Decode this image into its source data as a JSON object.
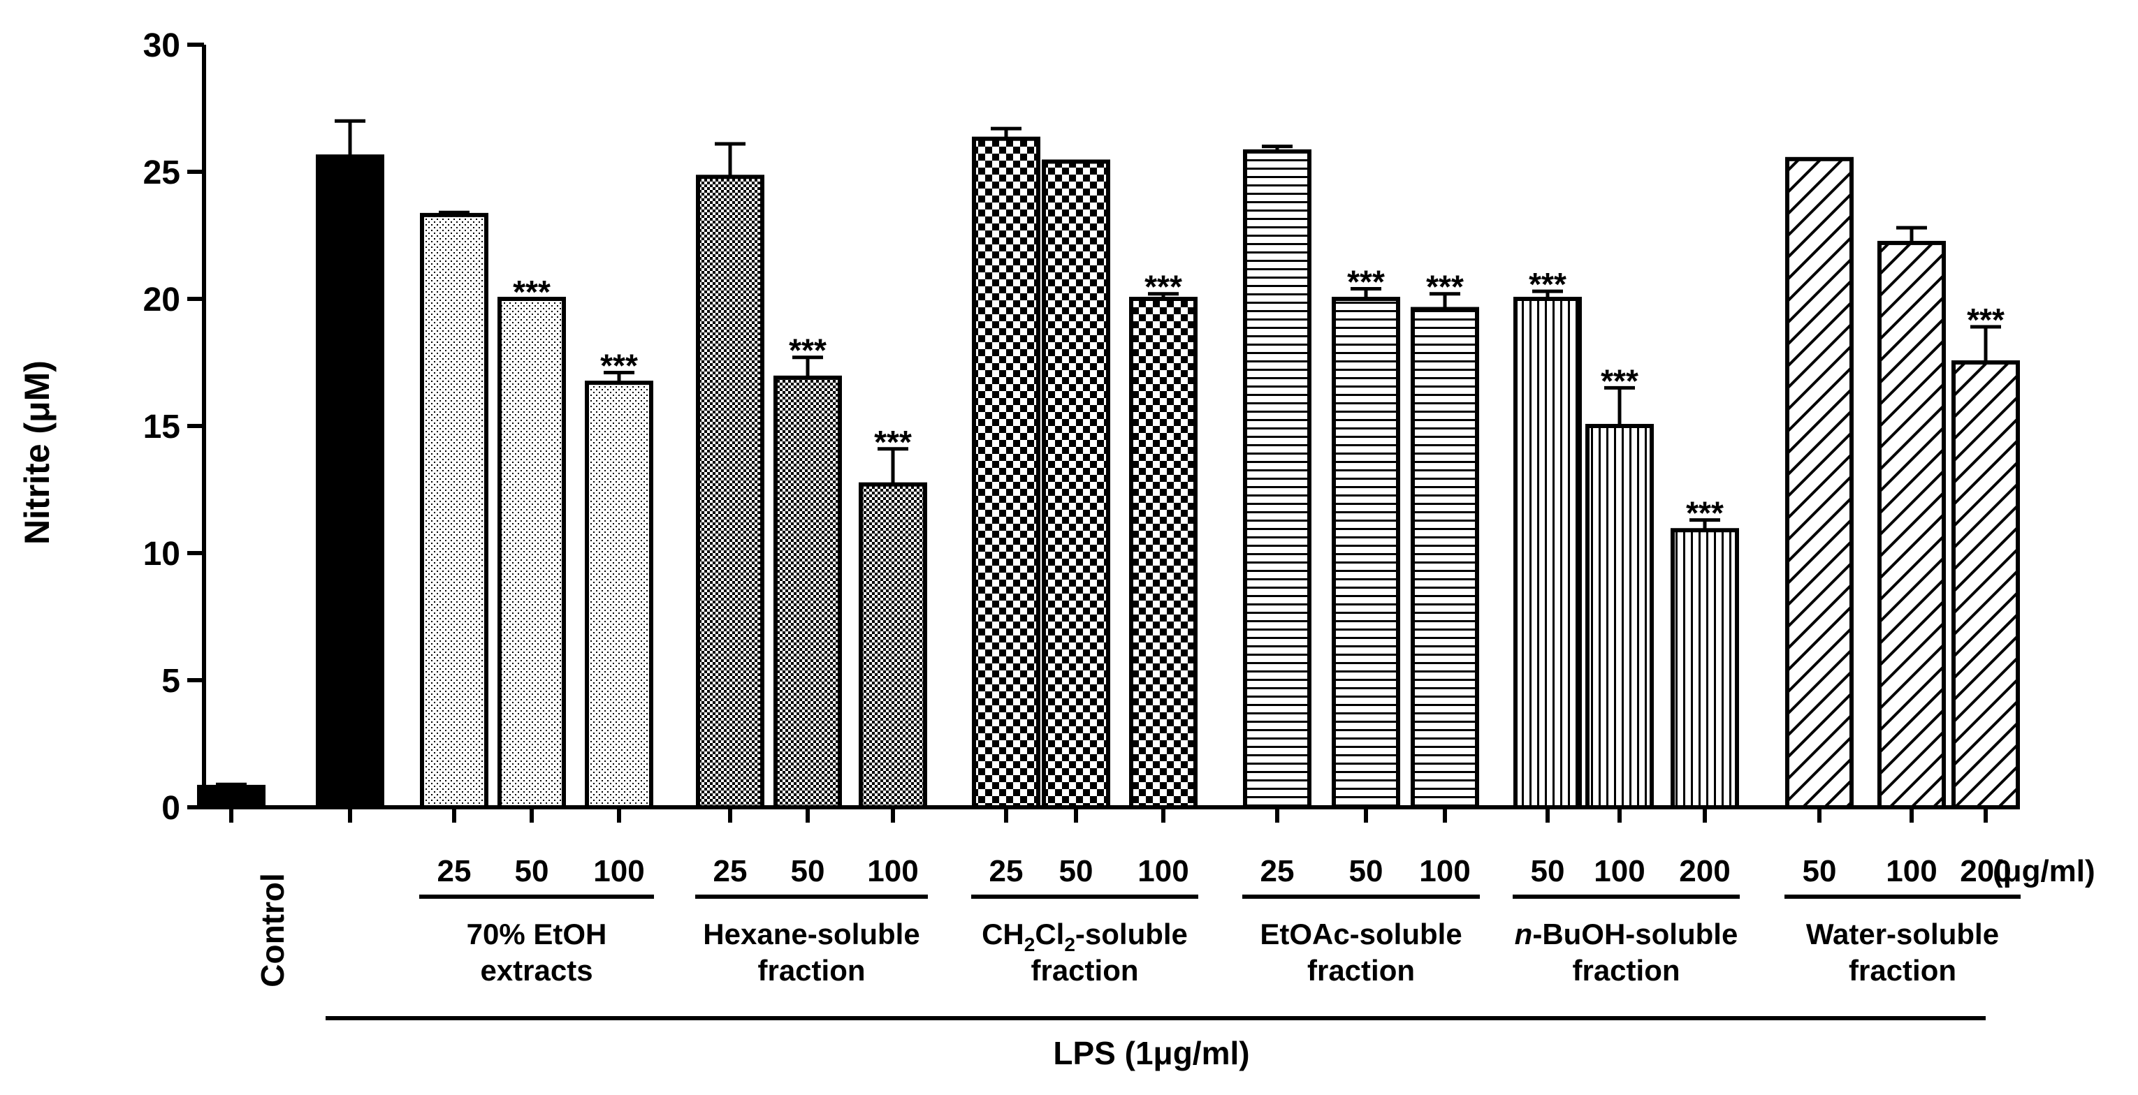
{
  "chart_data": {
    "type": "bar",
    "title": "",
    "ylabel": "Nitrite (μM)",
    "ylim": [
      0,
      30
    ],
    "yticks": [
      0,
      5,
      10,
      15,
      20,
      25,
      30
    ],
    "unit_label": "(μg/ml)",
    "lps_label": "LPS (1μg/ml)",
    "significance_marker": "***",
    "bars": [
      {
        "group": "control",
        "dose": "",
        "value": 0.8,
        "error": 0.1,
        "sig": false,
        "pattern": "solid"
      },
      {
        "group": "lps",
        "dose": "",
        "value": 25.6,
        "error": 1.4,
        "sig": false,
        "pattern": "solid"
      },
      {
        "group": "etoh",
        "dose": "25",
        "value": 23.3,
        "error": 0.1,
        "sig": false,
        "pattern": "dots"
      },
      {
        "group": "etoh",
        "dose": "50",
        "value": 20.0,
        "error": 0.0,
        "sig": true,
        "pattern": "dots"
      },
      {
        "group": "etoh",
        "dose": "100",
        "value": 16.7,
        "error": 0.4,
        "sig": true,
        "pattern": "dots"
      },
      {
        "group": "hexane",
        "dose": "25",
        "value": 24.8,
        "error": 1.3,
        "sig": false,
        "pattern": "finecheck"
      },
      {
        "group": "hexane",
        "dose": "50",
        "value": 16.9,
        "error": 0.8,
        "sig": true,
        "pattern": "finecheck"
      },
      {
        "group": "hexane",
        "dose": "100",
        "value": 12.7,
        "error": 1.4,
        "sig": true,
        "pattern": "finecheck"
      },
      {
        "group": "ch2cl2",
        "dose": "25",
        "value": 26.3,
        "error": 0.4,
        "sig": false,
        "pattern": "check"
      },
      {
        "group": "ch2cl2",
        "dose": "50",
        "value": 25.4,
        "error": 0.0,
        "sig": false,
        "pattern": "check"
      },
      {
        "group": "ch2cl2",
        "dose": "100",
        "value": 20.0,
        "error": 0.2,
        "sig": true,
        "pattern": "check"
      },
      {
        "group": "etoac",
        "dose": "25",
        "value": 25.8,
        "error": 0.2,
        "sig": false,
        "pattern": "hlines"
      },
      {
        "group": "etoac",
        "dose": "50",
        "value": 20.0,
        "error": 0.4,
        "sig": true,
        "pattern": "hlines"
      },
      {
        "group": "etoac",
        "dose": "100",
        "value": 19.6,
        "error": 0.6,
        "sig": true,
        "pattern": "hlines"
      },
      {
        "group": "buoh",
        "dose": "50",
        "value": 20.0,
        "error": 0.3,
        "sig": true,
        "pattern": "vlines"
      },
      {
        "group": "buoh",
        "dose": "100",
        "value": 15.0,
        "error": 1.5,
        "sig": true,
        "pattern": "vlines"
      },
      {
        "group": "buoh",
        "dose": "200",
        "value": 10.9,
        "error": 0.4,
        "sig": true,
        "pattern": "vlines"
      },
      {
        "group": "water",
        "dose": "50",
        "value": 25.5,
        "error": 0.0,
        "sig": false,
        "pattern": "diag"
      },
      {
        "group": "water",
        "dose": "100",
        "value": 22.2,
        "error": 0.6,
        "sig": false,
        "pattern": "diag"
      },
      {
        "group": "water",
        "dose": "200",
        "value": 17.5,
        "error": 1.4,
        "sig": true,
        "pattern": "diag"
      }
    ],
    "control_label": "Control",
    "groups": [
      {
        "id": "etoh",
        "line1": "70% EtOH",
        "line2": "extracts"
      },
      {
        "id": "hexane",
        "line1": "Hexane-soluble",
        "line2": "fraction"
      },
      {
        "id": "ch2cl2",
        "line1_parts": [
          "CH",
          "2",
          "Cl",
          "2",
          "-soluble"
        ],
        "line2": "fraction"
      },
      {
        "id": "etoac",
        "line1": "EtOAc-soluble",
        "line2": "fraction"
      },
      {
        "id": "buoh",
        "line1_italic": "n",
        "line1": "-BuOH-soluble",
        "line2": "fraction"
      },
      {
        "id": "water",
        "line1": "Water-soluble",
        "line2": "fraction"
      }
    ]
  }
}
